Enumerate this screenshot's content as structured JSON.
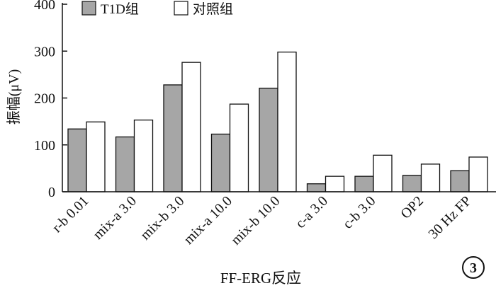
{
  "chart_data": {
    "type": "bar",
    "title": "",
    "xlabel": "FF-ERG反应",
    "ylabel": "振幅(μV)",
    "ylim": [
      0,
      400
    ],
    "yticks": [
      0,
      100,
      200,
      300,
      400
    ],
    "categories": [
      "r-b 0.01",
      "mix-a 3.0",
      "mix-b 3.0",
      "mix-a 10.0",
      "mix-b 10.0",
      "c-a 3.0",
      "c-b 3.0",
      "OP2",
      "30 Hz FP"
    ],
    "series": [
      {
        "name": "T1D组",
        "color": "#a6a6a6",
        "values": [
          134,
          117,
          228,
          123,
          221,
          17,
          33,
          35,
          45
        ]
      },
      {
        "name": "对照组",
        "color": "#ffffff",
        "values": [
          149,
          153,
          276,
          187,
          298,
          33,
          78,
          59,
          74
        ]
      }
    ],
    "legend_position": "top-left",
    "grid": false,
    "panel_label": "3"
  }
}
